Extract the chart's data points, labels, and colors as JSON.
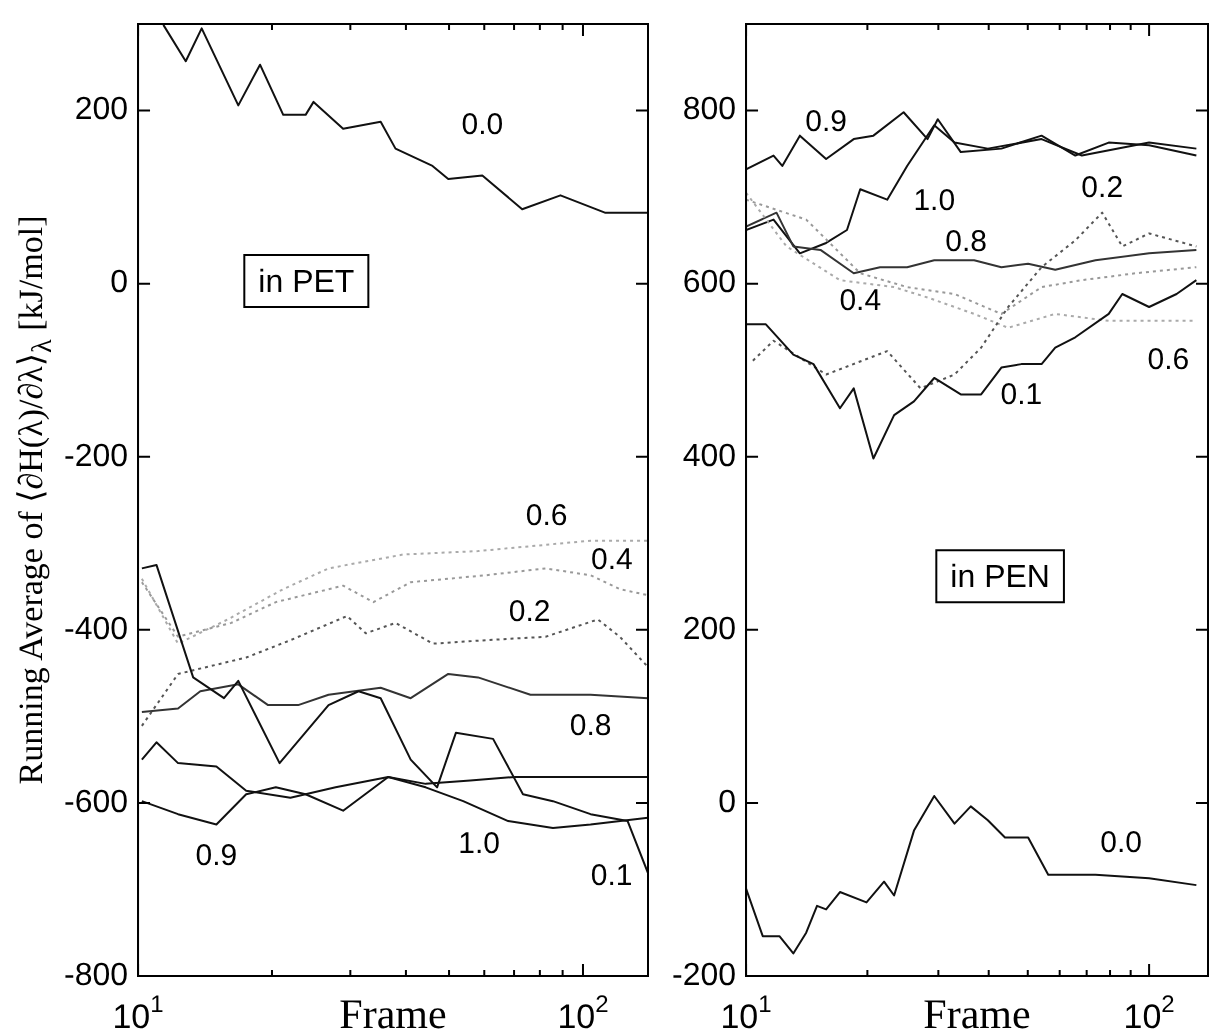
{
  "chart_data": [
    {
      "type": "line",
      "ylabel": "Running Average of ⟨∂H(λ)/∂λ⟩$_{λ}$ [kJ/mol]",
      "xlabel": "Frame",
      "log": "x",
      "grid": false,
      "legend": false,
      "xlim": [
        10,
        140
      ],
      "xticks": [
        {
          "value": 10,
          "label": "10$^{1}$"
        },
        {
          "value": 20,
          "label": null
        },
        {
          "value": 30,
          "label": null
        },
        {
          "value": 40,
          "label": null
        },
        {
          "value": 50,
          "label": null
        },
        {
          "value": 60,
          "label": null
        },
        {
          "value": 70,
          "label": null
        },
        {
          "value": 80,
          "label": null
        },
        {
          "value": 90,
          "label": null
        },
        {
          "value": 100,
          "label": "10$^{2}$"
        }
      ],
      "ylim": [
        -800,
        300
      ],
      "yticks": [
        -800,
        -600,
        -400,
        -200,
        0,
        200
      ],
      "series": [
        {
          "name": "0.0",
          "color": "#111111",
          "line_style": "solid",
          "x": [
            11.4,
            12.8,
            13.9,
            16.8,
            18.8,
            21.2,
            23.8,
            24.8,
            28.9,
            35.1,
            37.9,
            45.9,
            49.8,
            59.4,
            73,
            89,
            112,
            140
          ],
          "values": [
            299,
            257,
            295,
            206,
            253,
            195,
            195,
            210,
            179,
            187,
            156,
            136,
            121,
            125,
            86,
            102,
            82,
            82
          ]
        },
        {
          "name": "0.1",
          "color": "#111111",
          "line_style": "solid",
          "x": [
            10.2,
            11,
            13.3,
            15.6,
            16.8,
            20.8,
            26.8,
            31.3,
            35.1,
            41,
            47,
            51.8,
            62.8,
            73.3,
            85.6,
            104,
            126,
            140
          ],
          "values": [
            -329,
            -325,
            -455,
            -479,
            -459,
            -554,
            -487,
            -471,
            -479,
            -550,
            -582,
            -519,
            -526,
            -590,
            -598,
            -613,
            -621,
            -681
          ]
        },
        {
          "name": "0.2",
          "color": "#555555",
          "line_style": "dotted",
          "x": [
            10.2,
            12.3,
            17.5,
            22,
            29.5,
            32.5,
            37.9,
            46,
            60.4,
            82.4,
            108,
            121,
            140
          ],
          "values": [
            -511,
            -451,
            -432,
            -412,
            -384,
            -404,
            -392,
            -416,
            -412,
            -408,
            -388,
            -408,
            -443
          ]
        },
        {
          "name": "0.4",
          "color": "#999999",
          "line_style": "dotted",
          "x": [
            10.2,
            12.3,
            16.2,
            20.4,
            28.9,
            33.8,
            41,
            60.4,
            82.4,
            104,
            121,
            140
          ],
          "values": [
            -345,
            -408,
            -392,
            -368,
            -349,
            -368,
            -345,
            -337,
            -329,
            -337,
            -353,
            -360
          ]
        },
        {
          "name": "0.6",
          "color": "#aaaaaa",
          "line_style": "dotted",
          "x": [
            10.2,
            12.3,
            15.9,
            21.2,
            26.8,
            39.4,
            58.1,
            104,
            140
          ],
          "values": [
            -341,
            -416,
            -388,
            -353,
            -329,
            -313,
            -309,
            -297,
            -297
          ]
        },
        {
          "name": "0.8",
          "color": "#333333",
          "line_style": "solid",
          "x": [
            10.2,
            12.3,
            13.8,
            16.8,
            19.6,
            22.9,
            26.8,
            35.1,
            41,
            49.8,
            58.1,
            76.2,
            104,
            140
          ],
          "values": [
            -495,
            -491,
            -471,
            -463,
            -487,
            -487,
            -475,
            -467,
            -479,
            -451,
            -455,
            -475,
            -475,
            -479
          ]
        },
        {
          "name": "0.9",
          "color": "#111111",
          "line_style": "solid",
          "x": [
            10.2,
            12.3,
            15,
            17.5,
            20.4,
            23.8,
            28.9,
            36.5,
            44.3,
            55.8,
            70.5,
            104,
            140
          ],
          "values": [
            -598,
            -613,
            -625,
            -590,
            -582,
            -590,
            -609,
            -570,
            -578,
            -574,
            -570,
            -570,
            -570
          ]
        },
        {
          "name": "1.0",
          "color": "#111111",
          "line_style": "solid",
          "x": [
            10.2,
            11,
            12.3,
            15,
            17.5,
            22,
            27.8,
            36.5,
            44.3,
            53.8,
            67.9,
            85.6,
            104,
            140
          ],
          "values": [
            -550,
            -530,
            -554,
            -558,
            -586,
            -594,
            -582,
            -570,
            -582,
            -598,
            -621,
            -629,
            -625,
            -617
          ]
        }
      ],
      "annotations": [
        "in PET"
      ]
    },
    {
      "type": "line",
      "xlabel": "Frame",
      "log": "x",
      "grid": false,
      "legend": false,
      "xlim": [
        10,
        140
      ],
      "xticks": [
        {
          "value": 10,
          "label": "10$^{1}$"
        },
        {
          "value": 20,
          "label": null
        },
        {
          "value": 30,
          "label": null
        },
        {
          "value": 40,
          "label": null
        },
        {
          "value": 50,
          "label": null
        },
        {
          "value": 60,
          "label": null
        },
        {
          "value": 70,
          "label": null
        },
        {
          "value": 80,
          "label": null
        },
        {
          "value": 90,
          "label": null
        },
        {
          "value": 100,
          "label": "10$^{2}$"
        }
      ],
      "ylim": [
        -200,
        900
      ],
      "yticks": [
        -200,
        0,
        200,
        400,
        600,
        800
      ],
      "series": [
        {
          "name": "0.0",
          "color": "#111111",
          "line_style": "solid",
          "x": [
            10,
            11,
            12.1,
            13.1,
            14.1,
            15,
            15.8,
            17.1,
            19.9,
            22,
            23.3,
            26.1,
            29.3,
            32.9,
            36.1,
            39.8,
            43.9,
            50.1,
            56.2,
            73.6,
            100,
            131
          ],
          "values": [
            -99,
            -154,
            -154,
            -174,
            -150,
            -119,
            -123,
            -103,
            -115,
            -91,
            -107,
            -32,
            8,
            -24,
            -4,
            -20,
            -40,
            -40,
            -83,
            -83,
            -87,
            -95
          ]
        },
        {
          "name": "0.1",
          "color": "#111111",
          "line_style": "solid",
          "x": [
            10,
            11.2,
            13.1,
            14.7,
            17.1,
            18.5,
            20.7,
            23.3,
            26.1,
            29.3,
            34.1,
            38.3,
            43,
            48.2,
            54.1,
            58.5,
            65.6,
            79.4,
            85.8,
            100,
            117,
            131
          ],
          "values": [
            553,
            553,
            518,
            507,
            456,
            479,
            398,
            448,
            464,
            491,
            472,
            472,
            503,
            507,
            507,
            526,
            538,
            565,
            588,
            573,
            588,
            604
          ]
        },
        {
          "name": "0.2",
          "color": "#555555",
          "line_style": "dotted",
          "x": [
            10.4,
            11.7,
            15.8,
            22.4,
            27.1,
            32.9,
            38.3,
            44.7,
            54.1,
            65.6,
            76.5,
            85.8,
            100,
            131
          ],
          "values": [
            511,
            534,
            495,
            522,
            479,
            495,
            526,
            573,
            619,
            650,
            682,
            643,
            658,
            643
          ]
        },
        {
          "name": "0.4",
          "color": "#999999",
          "line_style": "dotted",
          "x": [
            10,
            14.1,
            19.2,
            25.1,
            32.9,
            43,
            54.1,
            68.1,
            92.6,
            131
          ],
          "values": [
            697,
            674,
            612,
            596,
            588,
            565,
            596,
            604,
            612,
            619
          ]
        },
        {
          "name": "0.6",
          "color": "#aaaaaa",
          "line_style": "dotted",
          "x": [
            10,
            12.6,
            17.1,
            23.3,
            28.2,
            36.8,
            44.7,
            58.5,
            79.4,
            131
          ],
          "values": [
            705,
            643,
            604,
            596,
            584,
            565,
            549,
            565,
            557,
            557
          ]
        },
        {
          "name": "0.8",
          "color": "#333333",
          "line_style": "solid",
          "x": [
            10,
            11.9,
            13.1,
            15.3,
            18.5,
            21.5,
            25.1,
            29.3,
            36.8,
            43,
            50.1,
            58.5,
            73.6,
            100,
            131
          ],
          "values": [
            666,
            682,
            643,
            639,
            612,
            619,
            619,
            627,
            627,
            619,
            623,
            616,
            627,
            635,
            639
          ]
        },
        {
          "name": "0.9",
          "color": "#111111",
          "line_style": "solid",
          "x": [
            10,
            11.7,
            12.3,
            13.6,
            15.8,
            18.5,
            20.7,
            24.6,
            28.2,
            29.9,
            34.1,
            43,
            54.1,
            65.6,
            79.4,
            100,
            131
          ],
          "values": [
            732,
            748,
            736,
            771,
            744,
            767,
            771,
            798,
            767,
            790,
            752,
            756,
            771,
            748,
            763,
            760,
            748
          ]
        },
        {
          "name": "1.0",
          "color": "#111111",
          "line_style": "solid",
          "x": [
            10,
            11.7,
            13.6,
            15.8,
            17.8,
            19.2,
            22.4,
            25.1,
            29.3,
            32.9,
            39.8,
            54.1,
            68.1,
            100,
            131
          ],
          "values": [
            662,
            674,
            635,
            647,
            662,
            709,
            697,
            736,
            783,
            763,
            756,
            767,
            748,
            763,
            756
          ]
        }
      ],
      "annotations": [
        "in PEN"
      ]
    }
  ]
}
